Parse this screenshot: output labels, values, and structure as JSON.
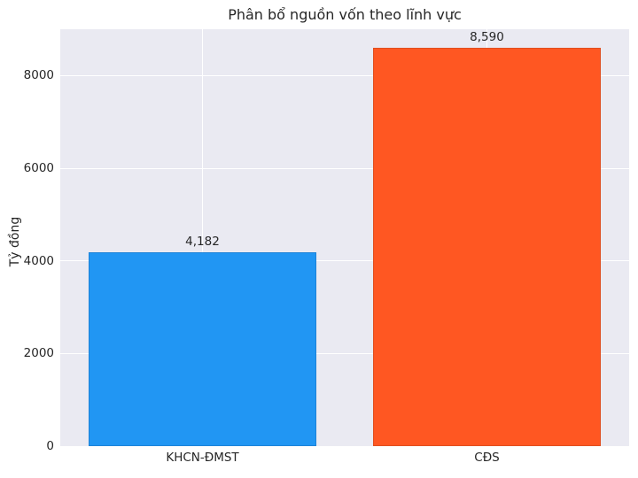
{
  "chart_data": {
    "type": "bar",
    "title": "Phân bổ nguồn vốn theo lĩnh vực",
    "xlabel": "",
    "ylabel": "Tỷ đồng",
    "categories": [
      "KHCN-ĐMST",
      "CĐS"
    ],
    "values": [
      4182,
      8590
    ],
    "value_labels": [
      "4,182",
      "8,590"
    ],
    "bar_colors": [
      "#2196F3",
      "#FF5722"
    ],
    "bar_edge_colors": [
      "#1d83d8",
      "#e04e1f"
    ],
    "bar_width_fraction": 0.8,
    "yticks": [
      0,
      2000,
      4000,
      6000,
      8000
    ],
    "ytick_labels": [
      "0",
      "2000",
      "4000",
      "6000",
      "8000"
    ],
    "ylim": [
      0,
      9000
    ],
    "grid": true,
    "legend": null,
    "colors": {
      "plot_background": "#EAEAF2",
      "figure_background": "#ffffff",
      "grid_color": "#ffffff",
      "text_color": "#262626"
    }
  }
}
